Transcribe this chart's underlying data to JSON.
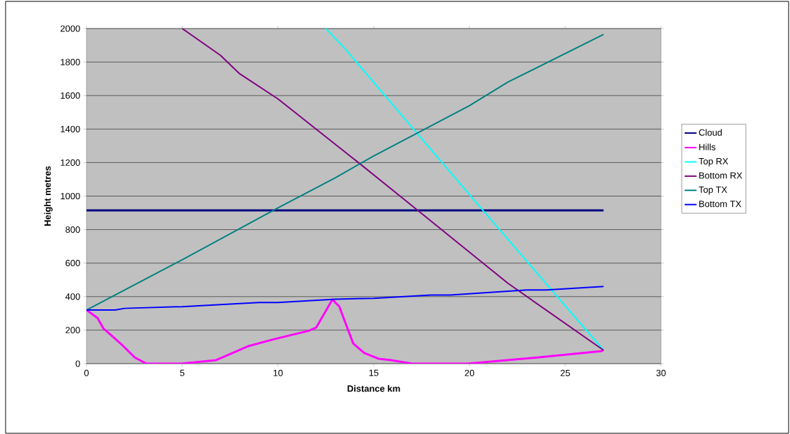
{
  "chart_data": {
    "type": "line",
    "xlabel": "Distance km",
    "ylabel": "Height metres",
    "xlim": [
      0,
      30
    ],
    "ylim": [
      0,
      2000
    ],
    "xticks": [
      0,
      5,
      10,
      15,
      20,
      25,
      30
    ],
    "yticks": [
      0,
      200,
      400,
      600,
      800,
      1000,
      1200,
      1400,
      1600,
      1800,
      2000
    ],
    "grid": "y",
    "legend": "right",
    "marker": "none",
    "line_style": "solid",
    "series": [
      {
        "name": "Cloud",
        "color": "#000080",
        "x": [
          0,
          27
        ],
        "values": [
          915,
          915
        ]
      },
      {
        "name": "Hills",
        "color": "#ff00ff",
        "x": [
          0,
          0.58,
          0.89,
          1.31,
          1.92,
          2.52,
          3.13,
          4.95,
          6.77,
          8.47,
          9.8,
          11.6,
          12.0,
          12.84,
          13.2,
          13.93,
          14.5,
          15.26,
          15.9,
          17,
          19.9,
          23.6,
          26.9,
          27
        ],
        "values": [
          320,
          272,
          209,
          168,
          105,
          37,
          0,
          0,
          21,
          105,
          146,
          196,
          216,
          383,
          341,
          120,
          64,
          29,
          21,
          0,
          0,
          37,
          75,
          80
        ]
      },
      {
        "name": "Top RX",
        "color": "#00ffff",
        "x": [
          12.5,
          13.5,
          17,
          20.7,
          27
        ],
        "values": [
          2000,
          1880,
          1410,
          915,
          80
        ]
      },
      {
        "name": "Bottom RX",
        "color": "#800080",
        "x": [
          5,
          7,
          8,
          10,
          14.2,
          17.3,
          22,
          27
        ],
        "values": [
          2000,
          1840,
          1730,
          1580,
          1200,
          915,
          480,
          80
        ]
      },
      {
        "name": "Top TX",
        "color": "#008080",
        "x": [
          0,
          1,
          5,
          10,
          13,
          15,
          20,
          22,
          27
        ],
        "values": [
          320,
          380,
          620,
          930,
          1110,
          1240,
          1540,
          1680,
          1965
        ]
      },
      {
        "name": "Bottom TX",
        "color": "#0000ff",
        "x": [
          0,
          1.5,
          2,
          5,
          9,
          10,
          13,
          15,
          18,
          19,
          23,
          24,
          27
        ],
        "values": [
          320,
          320,
          330,
          340,
          365,
          365,
          385,
          390,
          410,
          410,
          440,
          440,
          460
        ]
      }
    ]
  }
}
